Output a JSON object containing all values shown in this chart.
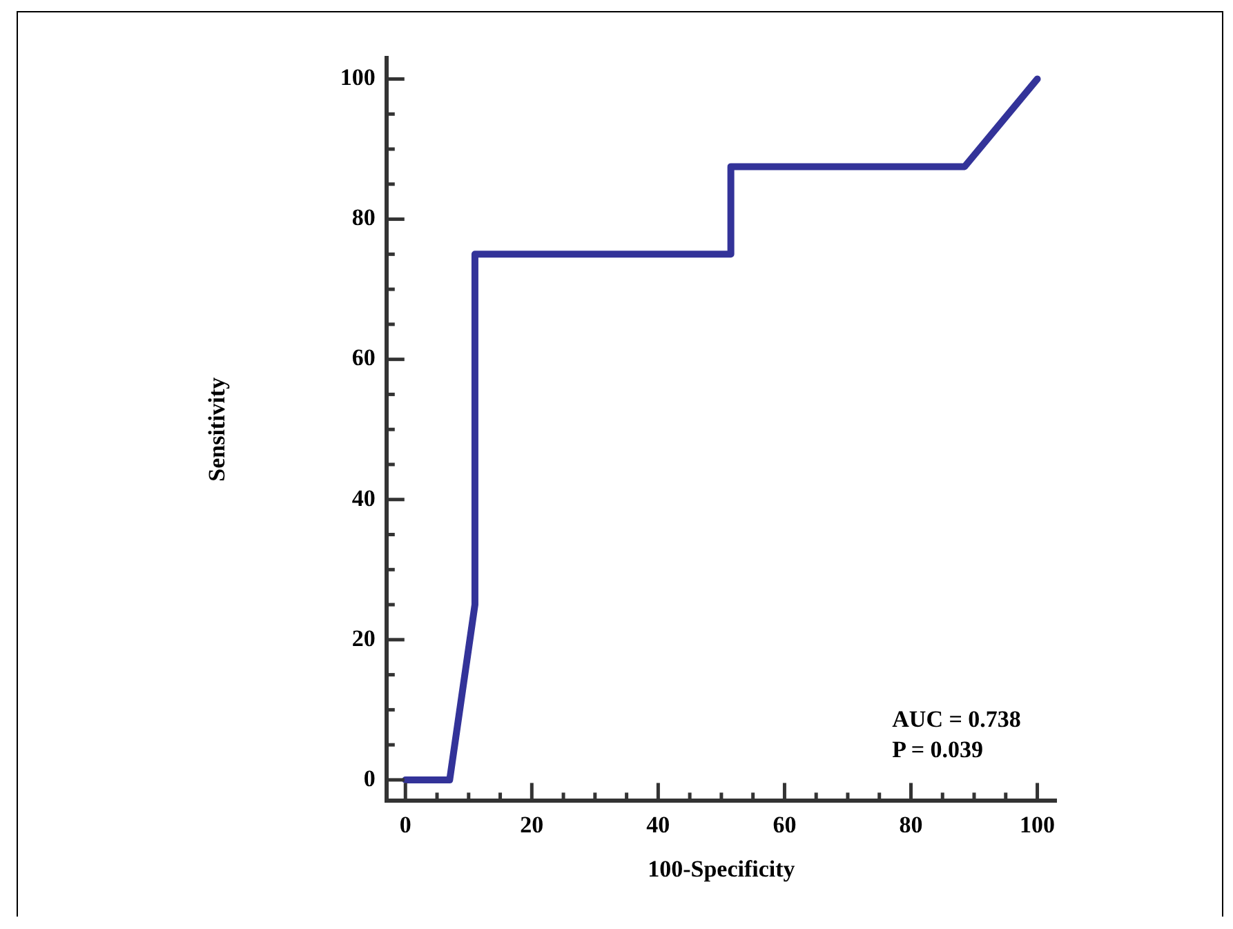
{
  "chart_data": {
    "type": "line",
    "xlabel": "100-Specificity",
    "ylabel": "Sensitivity",
    "series": [
      {
        "color": "#333399",
        "x": [
          0,
          7,
          11,
          11,
          51.5,
          51.5,
          88.5,
          100
        ],
        "values": [
          0,
          0,
          25,
          75,
          75,
          87.5,
          87.5,
          100
        ]
      }
    ],
    "xlim": [
      -3,
      103
    ],
    "ylim": [
      -3,
      103
    ],
    "xticks": [
      0,
      {
        "value": 5,
        "label": null
      },
      {
        "value": 10,
        "label": null
      },
      {
        "value": 15,
        "label": null
      },
      20,
      {
        "value": 25,
        "label": null
      },
      {
        "value": 30,
        "label": null
      },
      {
        "value": 35,
        "label": null
      },
      40,
      {
        "value": 45,
        "label": null
      },
      {
        "value": 50,
        "label": null
      },
      {
        "value": 55,
        "label": null
      },
      60,
      {
        "value": 65,
        "label": null
      },
      {
        "value": 70,
        "label": null
      },
      {
        "value": 75,
        "label": null
      },
      80,
      {
        "value": 85,
        "label": null
      },
      {
        "value": 90,
        "label": null
      },
      {
        "value": 95,
        "label": null
      },
      100
    ],
    "yticks": [
      0,
      {
        "value": 5,
        "label": null
      },
      {
        "value": 10,
        "label": null
      },
      {
        "value": 15,
        "label": null
      },
      20,
      {
        "value": 25,
        "label": null
      },
      {
        "value": 30,
        "label": null
      },
      {
        "value": 35,
        "label": null
      },
      40,
      {
        "value": 45,
        "label": null
      },
      {
        "value": 50,
        "label": null
      },
      {
        "value": 55,
        "label": null
      },
      60,
      {
        "value": 65,
        "label": null
      },
      {
        "value": 70,
        "label": null
      },
      {
        "value": 75,
        "label": null
      },
      80,
      {
        "value": 85,
        "label": null
      },
      {
        "value": 90,
        "label": null
      },
      {
        "value": 95,
        "label": null
      },
      100
    ],
    "annotations": [
      "AUC = 0.738",
      "P = 0.039"
    ],
    "grid": false,
    "legend": false,
    "marker": "none",
    "line_style": "solid"
  }
}
